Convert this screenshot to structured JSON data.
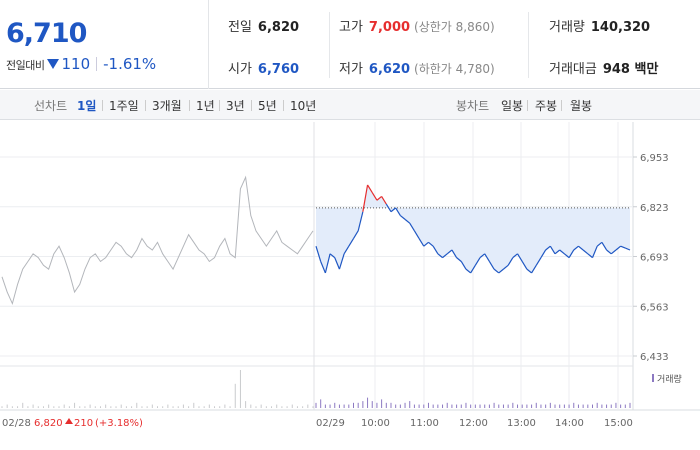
{
  "quote": {
    "price": "6,710",
    "change_label": "전일대비",
    "change_amount": "110",
    "change_pct": "-1.61%"
  },
  "stats": {
    "prev_close": {
      "label": "전일",
      "value": "6,820"
    },
    "high": {
      "label": "고가",
      "value": "7,000",
      "sub": "(상한가 8,860)"
    },
    "volume": {
      "label": "거래량",
      "value": "140,320"
    },
    "open": {
      "label": "시가",
      "value": "6,760"
    },
    "low": {
      "label": "저가",
      "value": "6,620",
      "sub": "(하한가 4,780)"
    },
    "amount": {
      "label": "거래대금",
      "value": "948 백만"
    }
  },
  "toolbar": {
    "line_label": "선차트",
    "line_tabs": [
      "1일",
      "1주일",
      "3개월",
      "1년",
      "3년",
      "5년",
      "10년"
    ],
    "active_tab": "1일",
    "candle_label": "봉차트",
    "candle_tabs": [
      "일봉",
      "주봉",
      "월봉"
    ]
  },
  "colors": {
    "up": "#e62e2e",
    "down": "#1f57c3",
    "prev_day_line": "#b3b6bb",
    "fill": "#e3ecfa",
    "volume_today": "#8c79c2",
    "volume_prev": "#c9cacd"
  },
  "chart_data": {
    "type": "line",
    "ylim": [
      6433,
      6953
    ],
    "y_ticks": [
      "6,953",
      "6,823",
      "6,693",
      "6,563",
      "6,433"
    ],
    "y_tick_values": [
      6953,
      6823,
      6693,
      6563,
      6433
    ],
    "reference_price": 6820,
    "x_ticks": [
      "02/29",
      "10:00",
      "11:00",
      "12:00",
      "13:00",
      "14:00",
      "15:00"
    ],
    "volume_legend": "거래량",
    "previous_day": {
      "label_date": "02/28",
      "label_close": "6,820",
      "label_change": "210",
      "label_pct": "(+3.18%)",
      "values": [
        6640,
        6600,
        6570,
        6620,
        6660,
        6680,
        6700,
        6690,
        6670,
        6660,
        6700,
        6720,
        6690,
        6650,
        6600,
        6620,
        6660,
        6690,
        6700,
        6680,
        6690,
        6710,
        6730,
        6720,
        6700,
        6690,
        6710,
        6740,
        6720,
        6710,
        6730,
        6700,
        6680,
        6660,
        6690,
        6720,
        6750,
        6730,
        6710,
        6700,
        6680,
        6690,
        6720,
        6740,
        6700,
        6690,
        6870,
        6900,
        6800,
        6760,
        6740,
        6720,
        6740,
        6760,
        6730,
        6720,
        6710,
        6700,
        6720,
        6740,
        6760
      ]
    },
    "today": {
      "values": [
        6720,
        6680,
        6650,
        6700,
        6690,
        6660,
        6700,
        6720,
        6740,
        6760,
        6810,
        6880,
        6860,
        6840,
        6850,
        6830,
        6810,
        6820,
        6800,
        6790,
        6780,
        6760,
        6740,
        6720,
        6730,
        6720,
        6700,
        6690,
        6700,
        6710,
        6690,
        6680,
        6660,
        6650,
        6670,
        6690,
        6700,
        6680,
        6660,
        6650,
        6660,
        6670,
        6690,
        6700,
        6680,
        6660,
        6650,
        6670,
        6690,
        6710,
        6720,
        6700,
        6710,
        6700,
        6690,
        6710,
        6720,
        6710,
        6700,
        6690,
        6720,
        6730,
        6710,
        6700,
        6710,
        6720,
        6715,
        6710
      ]
    },
    "volume": {
      "previous_day": [
        1,
        2,
        1,
        1,
        3,
        1,
        2,
        1,
        1,
        2,
        1,
        1,
        2,
        1,
        3,
        1,
        1,
        2,
        1,
        1,
        2,
        1,
        1,
        2,
        1,
        1,
        3,
        1,
        1,
        2,
        1,
        1,
        2,
        1,
        1,
        2,
        1,
        3,
        1,
        1,
        2,
        1,
        1,
        2,
        1,
        14,
        22,
        4,
        2,
        1,
        2,
        1,
        1,
        2,
        1,
        1,
        2,
        1,
        1,
        2,
        1
      ],
      "today": [
        3,
        5,
        2,
        2,
        3,
        2,
        2,
        2,
        3,
        3,
        4,
        6,
        4,
        3,
        5,
        3,
        3,
        2,
        2,
        3,
        4,
        2,
        2,
        2,
        3,
        2,
        2,
        2,
        3,
        2,
        2,
        2,
        3,
        2,
        2,
        2,
        2,
        2,
        3,
        2,
        2,
        2,
        3,
        2,
        2,
        2,
        2,
        3,
        2,
        2,
        3,
        2,
        2,
        2,
        2,
        3,
        2,
        2,
        2,
        2,
        3,
        2,
        2,
        2,
        3,
        2,
        2,
        3
      ]
    }
  }
}
